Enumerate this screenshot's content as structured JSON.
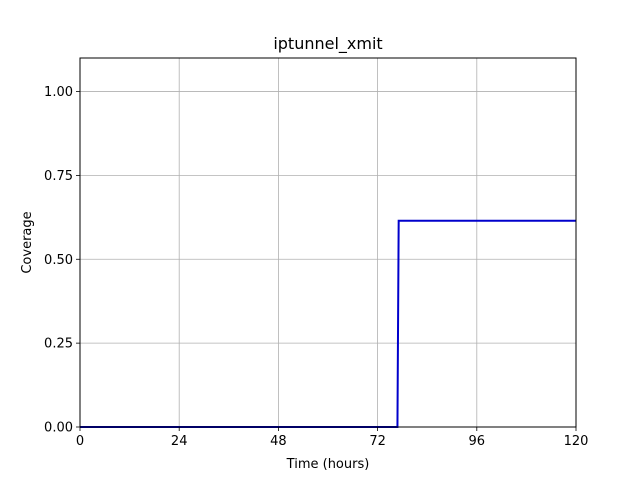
{
  "chart_data": {
    "type": "line",
    "title": "iptunnel_xmit",
    "xlabel": "Time (hours)",
    "ylabel": "Coverage",
    "xlim": [
      0,
      120
    ],
    "ylim": [
      0,
      1.1
    ],
    "xticks": [
      0,
      24,
      48,
      72,
      96,
      120
    ],
    "xtick_labels": [
      "0",
      "24",
      "48",
      "72",
      "96",
      "120"
    ],
    "yticks": [
      0,
      0.25,
      0.5,
      0.75,
      1.0
    ],
    "ytick_labels": [
      "0.00",
      "0.25",
      "0.50",
      "0.75",
      "1.00"
    ],
    "grid": true,
    "series": [
      {
        "color": "#0000cc",
        "x": [
          0,
          76.8,
          77.1,
          120
        ],
        "y": [
          0,
          0,
          0.615,
          0.615
        ]
      }
    ]
  }
}
